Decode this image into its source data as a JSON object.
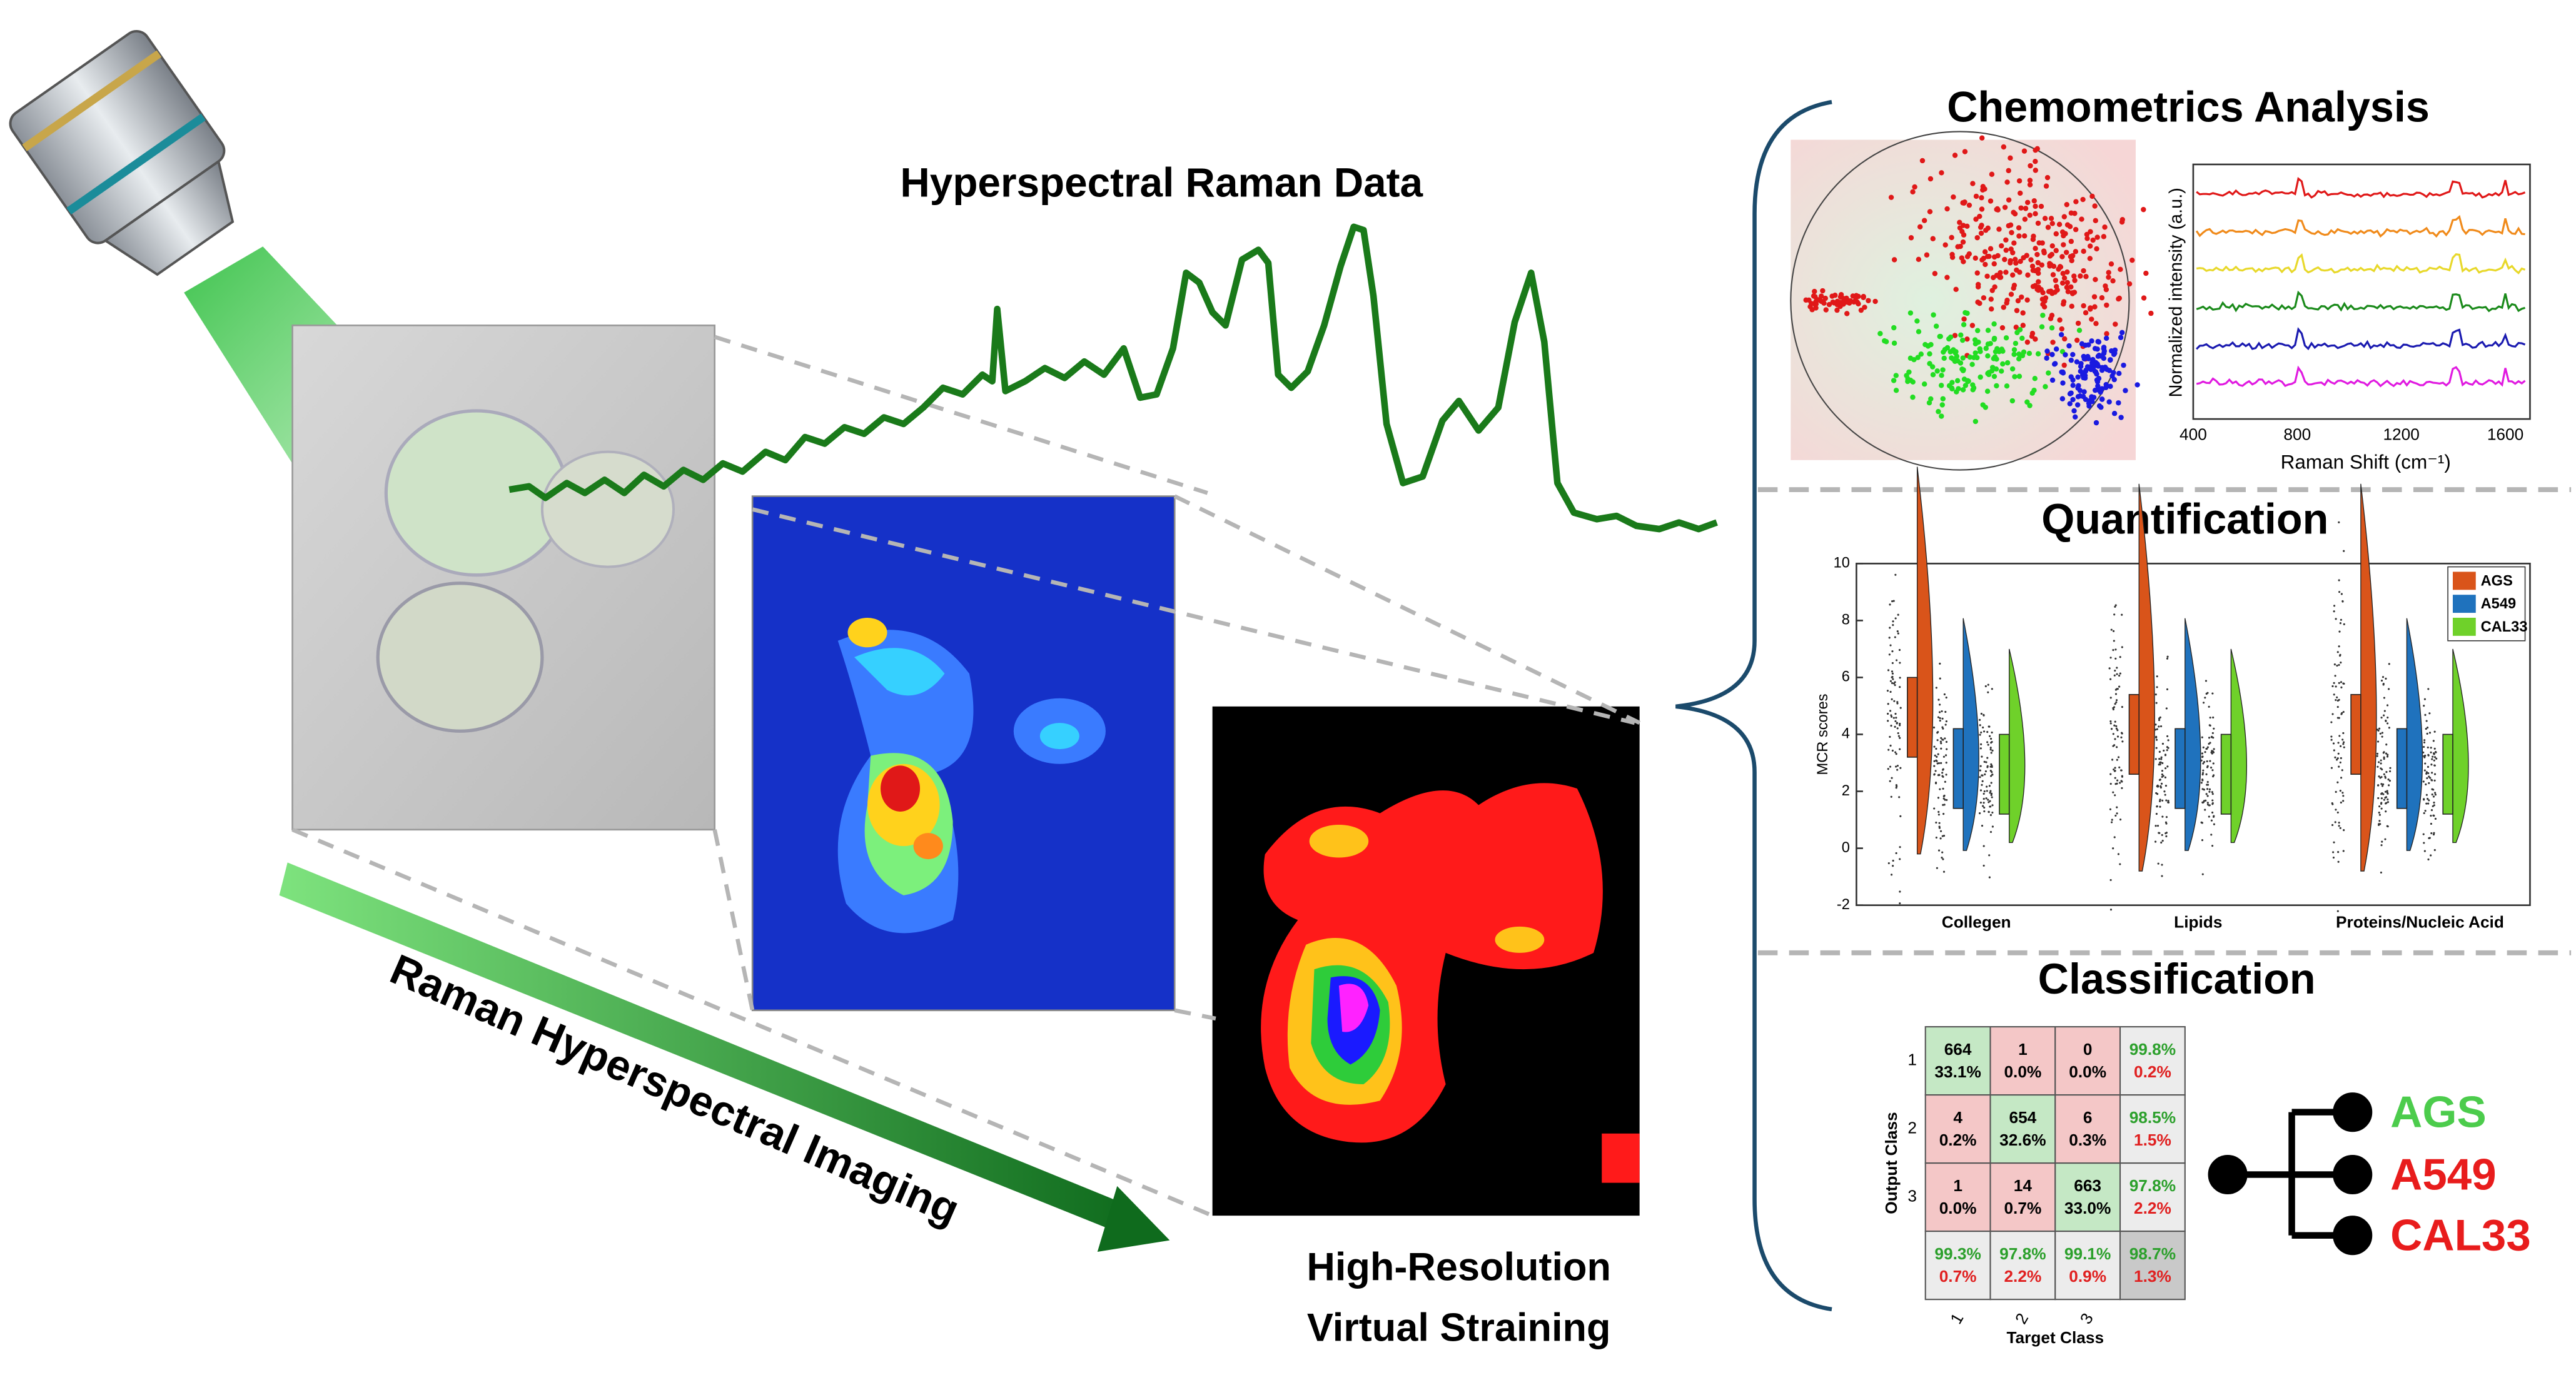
{
  "spectrum_title": "Hyperspectral Raman Data",
  "imaging_label": "Raman Hyperspectral Imaging",
  "staining_label": [
    "High-Resolution",
    "Virtual Straining"
  ],
  "chemometrics": {
    "title": "Chemometrics Analysis",
    "spectra_plot": {
      "y_label": "Normalized intensity (a.u.)",
      "x_label": "Raman Shift (cm⁻¹)",
      "x_ticks": [
        "400",
        "800",
        "1200",
        "1600"
      ]
    }
  },
  "quantification": {
    "title": "Quantification",
    "y_label": "MCR scores",
    "y_ticks": [
      "10",
      "8",
      "6",
      "4",
      "2",
      "0",
      "-2"
    ],
    "categories": [
      "Collegen",
      "Lipids",
      "Proteins/Nucleic Acid"
    ],
    "legend": [
      "AGS",
      "A549",
      "CAL33"
    ]
  },
  "classification": {
    "title": "Classification",
    "y_label": "Output Class",
    "x_label": "Target Class",
    "row_labels": [
      "1",
      "2",
      "3"
    ],
    "col_labels": [
      "1",
      "2",
      "3"
    ],
    "cells": [
      [
        [
          "664",
          "33.1%"
        ],
        [
          "1",
          "0.0%"
        ],
        [
          "0",
          "0.0%"
        ],
        [
          "99.8%",
          "0.2%"
        ]
      ],
      [
        [
          "4",
          "0.2%"
        ],
        [
          "654",
          "32.6%"
        ],
        [
          "6",
          "0.3%"
        ],
        [
          "98.5%",
          "1.5%"
        ]
      ],
      [
        [
          "1",
          "0.0%"
        ],
        [
          "14",
          "0.7%"
        ],
        [
          "663",
          "33.0%"
        ],
        [
          "97.8%",
          "2.2%"
        ]
      ],
      [
        [
          "99.3%",
          "0.7%"
        ],
        [
          "97.8%",
          "2.2%"
        ],
        [
          "99.1%",
          "0.9%"
        ],
        [
          "98.7%",
          "1.3%"
        ]
      ]
    ],
    "outputs": [
      "AGS",
      "A549",
      "CAL33"
    ]
  }
}
